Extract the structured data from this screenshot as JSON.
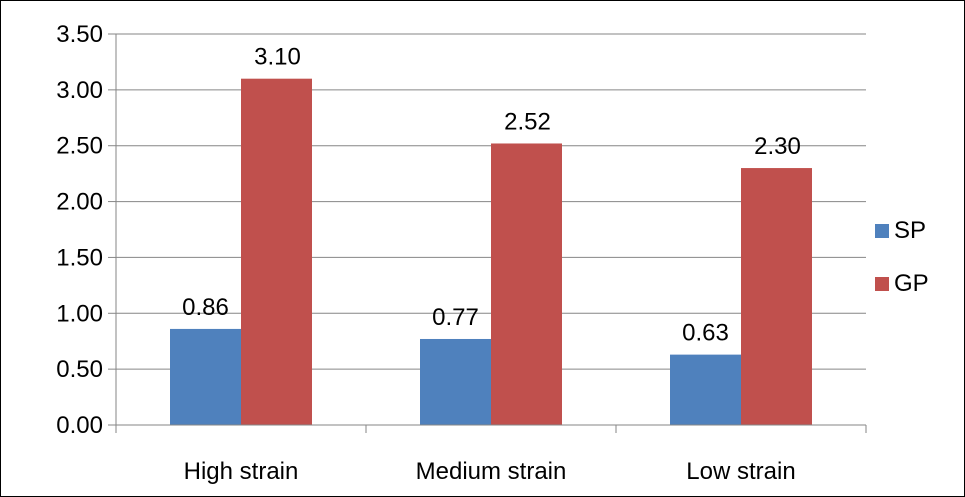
{
  "chart_data": {
    "type": "bar",
    "title": "",
    "xlabel": "",
    "ylabel": "",
    "categories": [
      "High strain",
      "Medium strain",
      "Low strain"
    ],
    "series": [
      {
        "name": "SP",
        "values": [
          0.86,
          0.77,
          0.63
        ],
        "labels": [
          "0.86",
          "0.77",
          "0.63"
        ],
        "color": "#4f81bd"
      },
      {
        "name": "GP",
        "values": [
          3.1,
          2.52,
          2.3
        ],
        "labels": [
          "3.10",
          "2.52",
          "2.30"
        ],
        "color": "#c0504d"
      }
    ],
    "ylim": [
      0,
      3.5
    ],
    "yticks": [
      "0.00",
      "0.50",
      "1.00",
      "1.50",
      "2.00",
      "2.50",
      "3.00",
      "3.50"
    ],
    "grid": true,
    "legend_position": "right"
  }
}
